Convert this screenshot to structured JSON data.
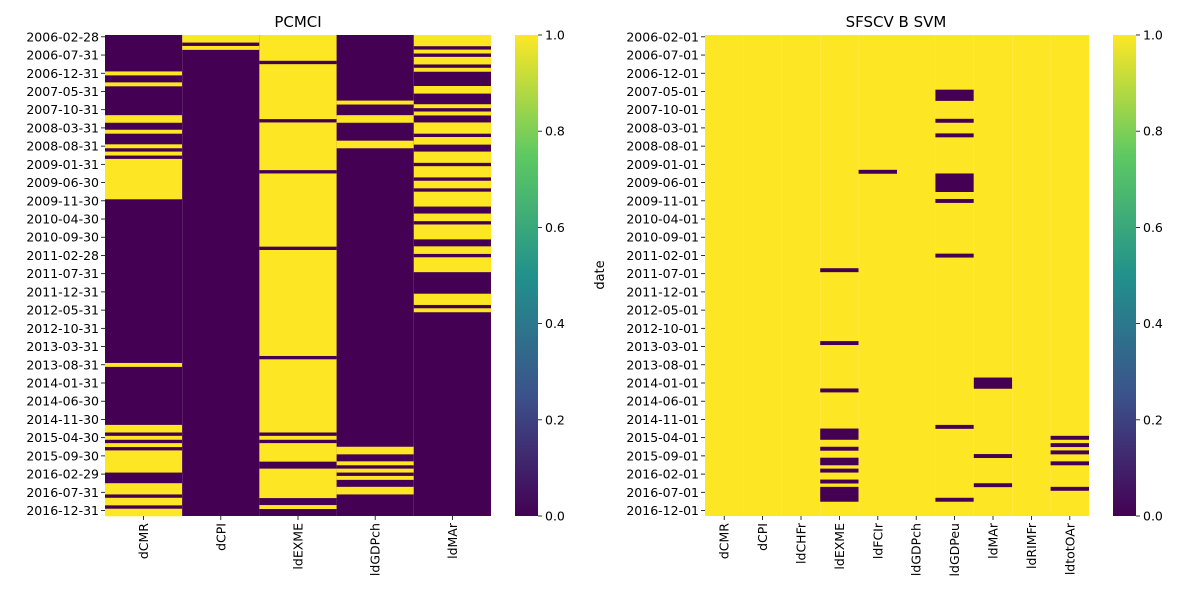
{
  "chart_data": [
    {
      "type": "heatmap",
      "title": "PCMCI",
      "xlabel": "",
      "ylabel": "",
      "x_categories": [
        "dCMR",
        "dCPI",
        "ldEXME",
        "ldGDPch",
        "ldMAr"
      ],
      "y_tick_labels": [
        "2006-02-28",
        "2006-07-31",
        "2006-12-31",
        "2007-05-31",
        "2007-10-31",
        "2008-03-31",
        "2008-08-31",
        "2009-01-31",
        "2009-06-30",
        "2009-11-30",
        "2010-04-30",
        "2010-09-30",
        "2011-02-28",
        "2011-07-31",
        "2011-12-31",
        "2012-05-31",
        "2012-10-31",
        "2013-03-31",
        "2013-08-31",
        "2014-01-31",
        "2014-06-30",
        "2014-11-30",
        "2015-04-30",
        "2015-09-30",
        "2016-02-29",
        "2016-07-31",
        "2016-12-31"
      ],
      "n_rows": 132,
      "value_range": [
        0,
        1
      ],
      "colorbar_ticks": [
        "0.0",
        "0.2",
        "0.4",
        "0.6",
        "0.8",
        "1.0"
      ],
      "colormap": [
        "#440154",
        "#3b528b",
        "#21918c",
        "#5ec962",
        "#fde725"
      ],
      "default_value": 0,
      "runs_note": "row ranges [start,end) where value = 1",
      "value_runs": [
        [
          [
            10,
            11
          ],
          [
            13,
            14
          ],
          [
            22,
            24
          ],
          [
            26,
            27
          ],
          [
            30,
            31
          ],
          [
            32,
            33
          ],
          [
            34,
            45
          ],
          [
            90,
            91
          ],
          [
            107,
            109
          ],
          [
            110,
            111
          ],
          [
            112,
            113
          ],
          [
            114,
            120
          ],
          [
            123,
            126
          ],
          [
            127,
            129
          ],
          [
            130,
            132
          ],
          [
            132,
            132
          ]
        ],
        [
          [
            0,
            2
          ],
          [
            3,
            4
          ]
        ],
        [
          [
            0,
            7
          ],
          [
            8,
            23
          ],
          [
            24,
            37
          ],
          [
            38,
            58
          ],
          [
            59,
            88
          ],
          [
            89,
            109
          ],
          [
            110,
            111
          ],
          [
            112,
            117
          ],
          [
            119,
            127
          ],
          [
            129,
            130
          ]
        ],
        [
          [
            18,
            19
          ],
          [
            22,
            24
          ],
          [
            29,
            31
          ],
          [
            113,
            115
          ],
          [
            117,
            118
          ],
          [
            119,
            120
          ],
          [
            121,
            122
          ],
          [
            124,
            125
          ],
          [
            125,
            126
          ],
          [
            136,
            136
          ]
        ],
        [
          [
            0,
            3
          ],
          [
            4,
            5
          ],
          [
            6,
            8
          ],
          [
            9,
            10
          ],
          [
            14,
            16
          ],
          [
            19,
            20
          ],
          [
            21,
            22
          ],
          [
            24,
            27
          ],
          [
            28,
            30
          ],
          [
            32,
            35
          ],
          [
            36,
            39
          ],
          [
            40,
            42
          ],
          [
            43,
            47
          ],
          [
            49,
            51
          ],
          [
            52,
            56
          ],
          [
            58,
            60
          ],
          [
            61,
            62
          ],
          [
            62,
            65
          ],
          [
            71,
            74
          ],
          [
            75,
            76
          ]
        ]
      ]
    },
    {
      "type": "heatmap",
      "title": "SFSCV B SVM",
      "xlabel": "",
      "ylabel": "date",
      "x_categories": [
        "dCMR",
        "dCPI",
        "ldCHFr",
        "ldEXME",
        "ldFCIr",
        "ldGDPch",
        "ldGDPeu",
        "ldMAr",
        "ldRIMFr",
        "ldtotOAr"
      ],
      "y_tick_labels": [
        "2006-02-01",
        "2006-07-01",
        "2006-12-01",
        "2007-05-01",
        "2007-10-01",
        "2008-03-01",
        "2008-08-01",
        "2009-01-01",
        "2009-06-01",
        "2009-11-01",
        "2010-04-01",
        "2010-09-01",
        "2011-02-01",
        "2011-07-01",
        "2011-12-01",
        "2012-05-01",
        "2012-10-01",
        "2013-03-01",
        "2013-08-01",
        "2014-01-01",
        "2014-06-01",
        "2014-11-01",
        "2015-04-01",
        "2015-09-01",
        "2016-02-01",
        "2016-07-01",
        "2016-12-01"
      ],
      "n_rows": 132,
      "value_range": [
        0,
        1
      ],
      "colorbar_ticks": [
        "0.0",
        "0.2",
        "0.4",
        "0.6",
        "0.8",
        "1.0"
      ],
      "colormap": [
        "#440154",
        "#3b528b",
        "#21918c",
        "#5ec962",
        "#fde725"
      ],
      "default_value": 1,
      "runs_note": "row ranges [start,end) where value = 0",
      "value_runs": [
        [],
        [],
        [],
        [
          [
            64,
            65
          ],
          [
            84,
            85
          ],
          [
            97,
            98
          ],
          [
            108,
            111
          ],
          [
            113,
            114
          ],
          [
            116,
            118
          ],
          [
            119,
            120
          ],
          [
            122,
            123
          ],
          [
            124,
            125
          ],
          [
            125,
            126
          ],
          [
            126,
            128
          ]
        ],
        [
          [
            37,
            38
          ]
        ],
        [],
        [
          [
            15,
            18
          ],
          [
            23,
            24
          ],
          [
            27,
            28
          ],
          [
            38,
            43
          ],
          [
            45,
            46
          ],
          [
            60,
            61
          ],
          [
            107,
            108
          ],
          [
            127,
            128
          ]
        ],
        [
          [
            94,
            97
          ],
          [
            115,
            116
          ],
          [
            123,
            124
          ]
        ],
        [],
        [
          [
            110,
            111
          ],
          [
            112,
            113
          ],
          [
            114,
            115
          ],
          [
            117,
            118
          ],
          [
            124,
            125
          ]
        ]
      ]
    }
  ]
}
